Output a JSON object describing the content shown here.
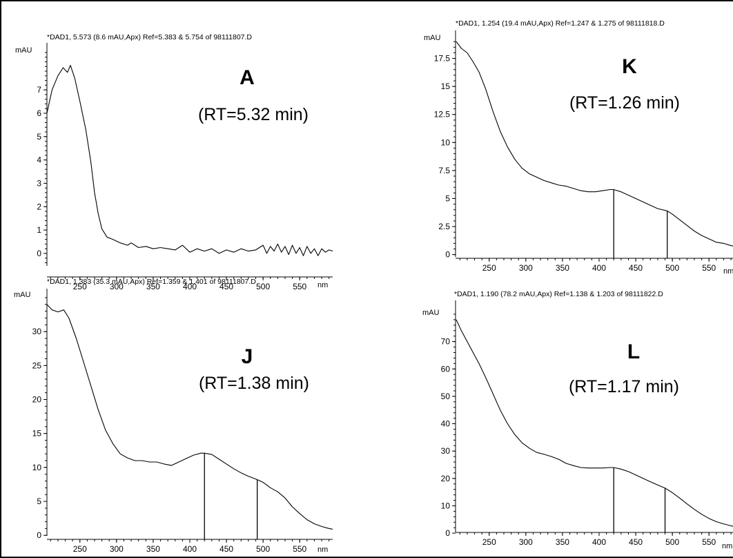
{
  "chart_data": [
    {
      "type": "line",
      "id": "A",
      "header": "*DAD1, 5.573 (8.6 mAU,Apx) Ref=5.383 & 5.754 of 98111807.D",
      "panel_label": "A",
      "rt_label": "(RT=5.32 min)",
      "ylabel": "mAU",
      "xlabel": "nm",
      "xlim": [
        205,
        595
      ],
      "ylim": [
        -0.8,
        8.6
      ],
      "xticks": [
        250,
        300,
        350,
        400,
        450,
        500,
        550
      ],
      "yticks": [
        0,
        1,
        2,
        3,
        4,
        5,
        6,
        7
      ],
      "markers": [],
      "x": [
        205,
        212,
        220,
        227,
        233,
        237,
        243,
        250,
        258,
        265,
        270,
        275,
        280,
        287,
        295,
        305,
        315,
        320,
        330,
        340,
        350,
        360,
        370,
        380,
        390,
        400,
        410,
        420,
        430,
        440,
        450,
        460,
        470,
        480,
        490,
        500,
        505,
        510,
        515,
        520,
        525,
        530,
        535,
        540,
        545,
        550,
        555,
        560,
        565,
        570,
        575,
        580,
        585,
        590,
        595
      ],
      "y": [
        6.0,
        7.0,
        7.6,
        7.95,
        7.75,
        8.05,
        7.5,
        6.5,
        5.3,
        3.9,
        2.6,
        1.7,
        1.05,
        0.7,
        0.6,
        0.45,
        0.35,
        0.45,
        0.25,
        0.3,
        0.2,
        0.25,
        0.2,
        0.15,
        0.35,
        0.05,
        0.2,
        0.1,
        0.2,
        0.0,
        0.15,
        0.05,
        0.2,
        0.1,
        0.15,
        0.35,
        0.0,
        0.3,
        0.1,
        0.4,
        0.05,
        0.3,
        -0.05,
        0.35,
        0.0,
        0.25,
        -0.1,
        0.3,
        0.0,
        0.2,
        -0.1,
        0.2,
        0.05,
        0.15,
        0.1
      ]
    },
    {
      "type": "line",
      "id": "J",
      "header": "*DAD1, 1.383 (35.3 mAU,Apx) Ref=1.359 & 1.401 of 98111807.D",
      "panel_label": "J",
      "rt_label": "(RT=1.38 min)",
      "ylabel": "mAU",
      "xlabel": "nm",
      "xlim": [
        205,
        595
      ],
      "ylim": [
        -1,
        35
      ],
      "xticks": [
        250,
        300,
        350,
        400,
        450,
        500,
        550
      ],
      "yticks": [
        0,
        5,
        10,
        15,
        20,
        25,
        30
      ],
      "markers": [
        420,
        492
      ],
      "x": [
        205,
        212,
        220,
        228,
        235,
        245,
        255,
        265,
        275,
        285,
        295,
        305,
        315,
        325,
        335,
        345,
        355,
        365,
        375,
        385,
        395,
        405,
        415,
        420,
        430,
        440,
        450,
        460,
        470,
        480,
        492,
        500,
        510,
        520,
        530,
        540,
        550,
        560,
        570,
        580,
        590,
        595
      ],
      "y": [
        34.0,
        33.2,
        32.9,
        33.2,
        32.0,
        29.0,
        25.5,
        22.0,
        18.5,
        15.5,
        13.5,
        12.0,
        11.4,
        11.0,
        11.0,
        10.8,
        10.8,
        10.5,
        10.3,
        10.8,
        11.3,
        11.8,
        12.1,
        12.1,
        11.9,
        11.2,
        10.5,
        9.8,
        9.2,
        8.7,
        8.2,
        7.8,
        7.0,
        6.4,
        5.5,
        4.2,
        3.2,
        2.3,
        1.7,
        1.3,
        1.0,
        0.9
      ]
    },
    {
      "type": "line",
      "id": "K",
      "header": "*DAD1, 1.254 (19.4 mAU,Apx) Ref=1.247 & 1.275 of 98111818.D",
      "panel_label": "K",
      "rt_label": "(RT=1.26 min)",
      "ylabel": "mAU",
      "xlabel": "nm",
      "xlim": [
        205,
        595
      ],
      "ylim": [
        -0.7,
        19.2
      ],
      "xticks": [
        250,
        300,
        350,
        400,
        450,
        500,
        550
      ],
      "yticks": [
        0,
        2.5,
        5,
        7.5,
        10,
        12.5,
        15,
        17.5
      ],
      "markers": [
        420,
        493
      ],
      "x": [
        205,
        212,
        220,
        228,
        236,
        245,
        255,
        265,
        275,
        285,
        295,
        305,
        315,
        325,
        335,
        345,
        355,
        365,
        375,
        385,
        395,
        405,
        415,
        420,
        430,
        440,
        450,
        460,
        470,
        480,
        493,
        500,
        510,
        520,
        530,
        540,
        550,
        560,
        570,
        580,
        590,
        595
      ],
      "y": [
        19.0,
        18.4,
        18.0,
        17.2,
        16.3,
        14.8,
        12.8,
        11.0,
        9.6,
        8.5,
        7.7,
        7.2,
        6.9,
        6.6,
        6.4,
        6.2,
        6.1,
        5.9,
        5.7,
        5.6,
        5.6,
        5.7,
        5.8,
        5.8,
        5.6,
        5.3,
        5.0,
        4.7,
        4.4,
        4.1,
        3.9,
        3.6,
        3.1,
        2.6,
        2.1,
        1.7,
        1.4,
        1.1,
        1.0,
        0.8,
        0.7,
        0.7
      ]
    },
    {
      "type": "line",
      "id": "L",
      "header": "*DAD1, 1.190 (78.2 mAU,Apx) Ref=1.138 & 1.203 of 98111822.D",
      "panel_label": "L",
      "rt_label": "(RT=1.17 min)",
      "ylabel": "mAU",
      "xlabel": "nm",
      "xlim": [
        205,
        595
      ],
      "ylim": [
        -2,
        80
      ],
      "xticks": [
        250,
        300,
        350,
        400,
        450,
        500,
        550
      ],
      "yticks": [
        0,
        10,
        20,
        30,
        40,
        50,
        60,
        70
      ],
      "markers": [
        420,
        490
      ],
      "x": [
        205,
        212,
        220,
        228,
        236,
        245,
        255,
        265,
        275,
        285,
        295,
        305,
        315,
        325,
        335,
        345,
        355,
        365,
        375,
        385,
        395,
        405,
        415,
        420,
        430,
        440,
        450,
        460,
        470,
        480,
        490,
        500,
        510,
        520,
        530,
        540,
        550,
        560,
        570,
        580,
        590,
        595
      ],
      "y": [
        78.0,
        74.0,
        70.0,
        66.0,
        62.0,
        57.0,
        51.0,
        45.0,
        40.0,
        36.0,
        33.0,
        31.0,
        29.5,
        28.8,
        28.0,
        27.0,
        25.5,
        24.7,
        24.0,
        23.8,
        23.8,
        23.8,
        24.0,
        24.0,
        23.4,
        22.5,
        21.3,
        20.0,
        18.8,
        17.6,
        16.5,
        14.8,
        12.8,
        10.7,
        8.7,
        6.9,
        5.4,
        4.2,
        3.4,
        2.7,
        2.2,
        2.0
      ]
    }
  ]
}
